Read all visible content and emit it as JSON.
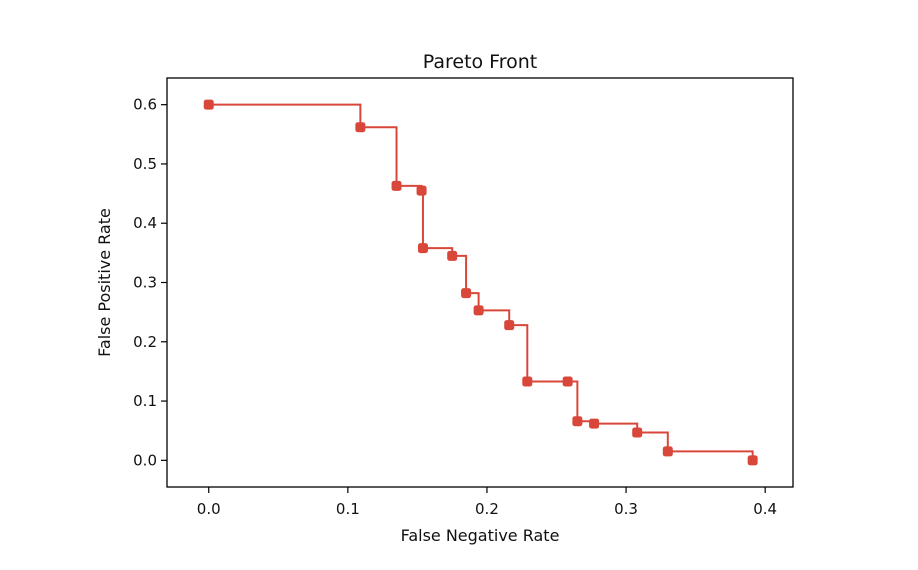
{
  "chart_data": {
    "type": "line",
    "title": "Pareto Front",
    "xlabel": "False Negative Rate",
    "ylabel": "False Positive Rate",
    "xlim": [
      -0.03,
      0.42
    ],
    "ylim": [
      -0.045,
      0.645
    ],
    "xticks": [
      "0.0",
      "0.1",
      "0.2",
      "0.3",
      "0.4"
    ],
    "yticks": [
      "0.0",
      "0.1",
      "0.2",
      "0.3",
      "0.4",
      "0.5",
      "0.6"
    ],
    "grid": false,
    "step": "post",
    "series": [
      {
        "color": "#d9473a",
        "points": [
          {
            "x": 0.0,
            "y": 0.6
          },
          {
            "x": 0.109,
            "y": 0.562
          },
          {
            "x": 0.135,
            "y": 0.463
          },
          {
            "x": 0.153,
            "y": 0.455
          },
          {
            "x": 0.154,
            "y": 0.358
          },
          {
            "x": 0.175,
            "y": 0.345
          },
          {
            "x": 0.185,
            "y": 0.282
          },
          {
            "x": 0.194,
            "y": 0.253
          },
          {
            "x": 0.216,
            "y": 0.228
          },
          {
            "x": 0.229,
            "y": 0.133
          },
          {
            "x": 0.258,
            "y": 0.133
          },
          {
            "x": 0.265,
            "y": 0.066
          },
          {
            "x": 0.277,
            "y": 0.062
          },
          {
            "x": 0.308,
            "y": 0.047
          },
          {
            "x": 0.33,
            "y": 0.015
          },
          {
            "x": 0.391,
            "y": 0.0
          }
        ]
      }
    ]
  }
}
